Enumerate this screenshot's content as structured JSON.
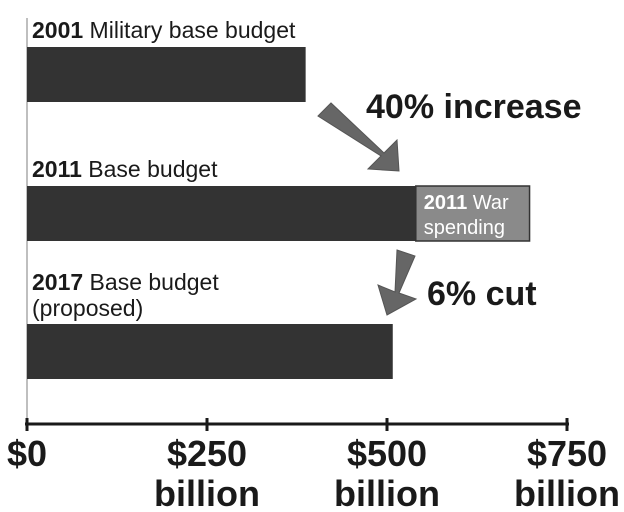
{
  "chart_data": {
    "type": "bar",
    "orientation": "horizontal",
    "stacked": true,
    "colors": {
      "base": "#333333",
      "war": "#8a8a8a",
      "arrow": "#666666"
    },
    "xlim": [
      0,
      750
    ],
    "x_ticks": [
      {
        "value": 0,
        "line1": "$0",
        "line2": ""
      },
      {
        "value": 250,
        "line1": "$250",
        "line2": "billion"
      },
      {
        "value": 500,
        "line1": "$500",
        "line2": "billion"
      },
      {
        "value": 750,
        "line1": "$750",
        "line2": "billion"
      }
    ],
    "bars": [
      {
        "year": "2001",
        "label": "Military base budget",
        "label_line2": "",
        "base": 387,
        "war": 0
      },
      {
        "year": "2011",
        "label": "Base budget",
        "label_line2": "",
        "base": 540,
        "war": 158,
        "war_year": "2011",
        "war_label": "War",
        "war_label_line2": "spending"
      },
      {
        "year": "2017",
        "label": "Base budget",
        "label_line2": "(proposed)",
        "base": 508,
        "war": 0
      }
    ],
    "annotations": [
      {
        "text": "40% increase"
      },
      {
        "text": "6% cut"
      }
    ],
    "grid": false,
    "legend": "none"
  }
}
